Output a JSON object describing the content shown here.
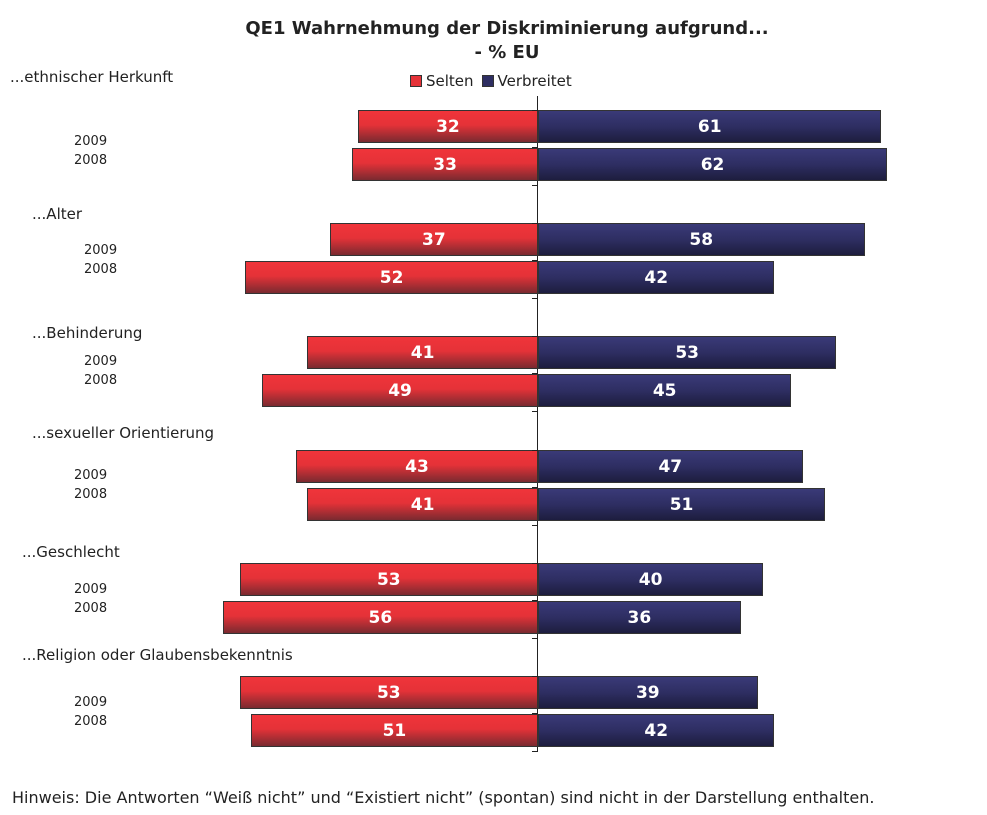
{
  "chart_data": {
    "type": "bar",
    "orientation": "horizontal-diverging",
    "title": "QE1 Wahrnehmung der Diskriminierung aufgrund...",
    "subtitle": "- % EU",
    "legend": {
      "placement": "top",
      "entries": [
        "Selten",
        "Verbreitet"
      ]
    },
    "colors": {
      "Selten": "#e53238",
      "Verbreitet": "#2e2e62"
    },
    "years": [
      "2009",
      "2008"
    ],
    "categories": [
      "...ethnischer Herkunft",
      "...Alter",
      "...Behinderung",
      "...sexueller Orientierung",
      "...Geschlecht",
      "...Religion oder Glaubensbekenntnis"
    ],
    "series": [
      {
        "name": "Selten",
        "values": [
          [
            32,
            33
          ],
          [
            37,
            52
          ],
          [
            41,
            49
          ],
          [
            43,
            41
          ],
          [
            53,
            56
          ],
          [
            53,
            51
          ]
        ]
      },
      {
        "name": "Verbreitet",
        "values": [
          [
            61,
            62
          ],
          [
            58,
            42
          ],
          [
            53,
            45
          ],
          [
            47,
            51
          ],
          [
            40,
            36
          ],
          [
            39,
            42
          ]
        ]
      }
    ]
  },
  "note": "Hinweis: Die Antworten “Weiß nicht” und “Existiert nicht” (spontan) sind nicht in der Darstellung enthalten."
}
